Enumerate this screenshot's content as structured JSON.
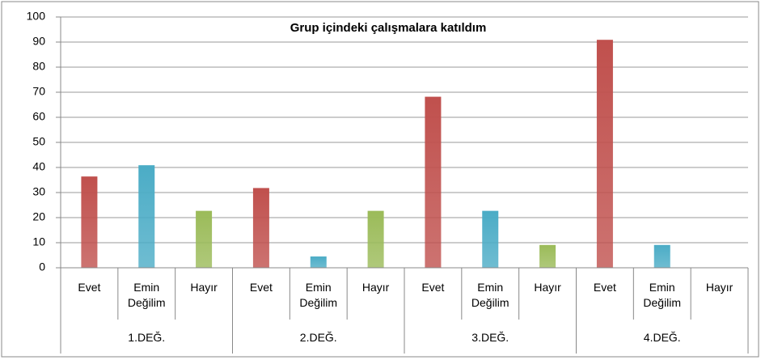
{
  "chart_data": {
    "type": "bar",
    "title": "Grup içindeki çalışmalara  katıldım",
    "groups": [
      "1.DEĞ.",
      "2.DEĞ.",
      "3.DEĞ.",
      "4.DEĞ."
    ],
    "series": [
      {
        "name": "Evet",
        "color": "#c0504d",
        "values": [
          36.4,
          31.8,
          68.2,
          90.9
        ]
      },
      {
        "name": "Emin Değilim",
        "color": "#4bacc6",
        "values": [
          40.9,
          4.5,
          22.7,
          9.1
        ]
      },
      {
        "name": "Hayır",
        "color": "#9bbb59",
        "values": [
          22.7,
          22.7,
          9.1,
          0
        ]
      }
    ],
    "ylim": [
      0,
      100
    ],
    "yticks": [
      0,
      10,
      20,
      30,
      40,
      50,
      60,
      70,
      80,
      90,
      100
    ],
    "grid": true
  }
}
